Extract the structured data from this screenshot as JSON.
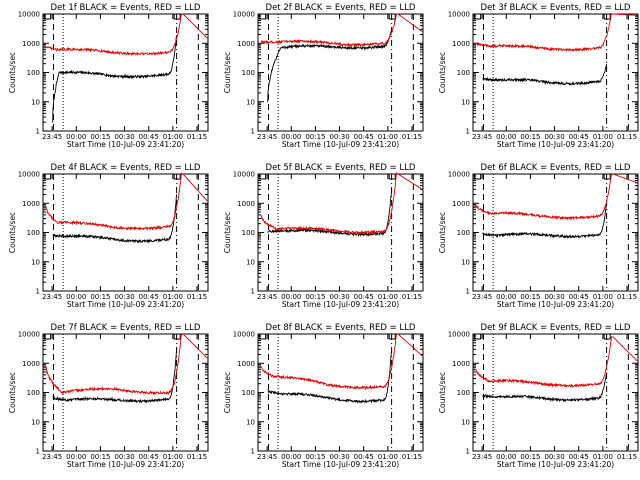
{
  "colors": {
    "events": "#000000",
    "lld": "#e00000",
    "axis": "#000000"
  },
  "shared": {
    "ylabel": "Counts/sec",
    "xlabel": "Start Time (10-Jul-09 23:41:20)",
    "yticks": [
      "1",
      "10",
      "100",
      "1000",
      "10000"
    ],
    "xticks": [
      "23:45",
      "00:00",
      "00:15",
      "00:30",
      "00:45",
      "01:00",
      "01:15"
    ],
    "ylim": [
      1,
      10000
    ],
    "xlim_minutes": [
      -1.3,
      37.5
    ]
  },
  "chart_data": [
    {
      "type": "line",
      "title": "Det 1f BLACK = Events, RED = LLD",
      "series": [
        {
          "name": "Events",
          "start": 4,
          "v0": 2,
          "v1": 100,
          "p": 4,
          "v2": 75,
          "v3": 90,
          "v4": 2000
        },
        {
          "name": "LLD",
          "start": 0,
          "v0": 800,
          "v1": 600,
          "p": 7,
          "v2": 480,
          "v3": 500,
          "v4": 10000,
          "decay": 1500
        }
      ]
    },
    {
      "type": "line",
      "title": "Det 2f BLACK = Events, RED = LLD",
      "series": [
        {
          "name": "Events",
          "start": 4,
          "v0": 10,
          "v1": 700,
          "p": 8,
          "v2": 750,
          "v3": 800,
          "v4": 3000
        },
        {
          "name": "LLD",
          "start": 0,
          "v0": 1100,
          "v1": 1100,
          "p": 10,
          "v2": 1000,
          "v3": 1000,
          "v4": 10000,
          "decay": 2500
        }
      ]
    },
    {
      "type": "line",
      "title": "Det 3f BLACK = Events, RED = LLD",
      "series": [
        {
          "name": "Events",
          "start": 4,
          "v0": 60,
          "v1": 55,
          "p": 12,
          "v2": 45,
          "v3": 50,
          "v4": 200
        },
        {
          "name": "LLD",
          "start": 0,
          "v0": 1000,
          "v1": 800,
          "p": 10,
          "v2": 650,
          "v3": 700,
          "v4": 10000,
          "decay": 9000
        }
      ]
    },
    {
      "type": "line",
      "title": "Det 4f BLACK = Events, RED = LLD",
      "series": [
        {
          "name": "Events",
          "start": 4,
          "v0": 80,
          "v1": 75,
          "p": 8,
          "v2": 55,
          "v3": 60,
          "v4": 2000
        },
        {
          "name": "LLD",
          "start": 0,
          "v0": 800,
          "v1": 220,
          "p": 7,
          "v2": 150,
          "v3": 160,
          "v4": 10000,
          "decay": 1200
        }
      ]
    },
    {
      "type": "line",
      "title": "Det 5f BLACK = Events, RED = LLD",
      "series": [
        {
          "name": "Events",
          "start": 4,
          "v0": 110,
          "v1": 110,
          "p": 10,
          "v2": 100,
          "v3": 95,
          "v4": 3000
        },
        {
          "name": "LLD",
          "start": 0,
          "v0": 400,
          "v1": 130,
          "p": 10,
          "v2": 120,
          "v3": 110,
          "v4": 10000,
          "decay": 3000
        }
      ]
    },
    {
      "type": "line",
      "title": "Det 6f BLACK = Events, RED = LLD",
      "series": [
        {
          "name": "Events",
          "start": 4,
          "v0": 90,
          "v1": 80,
          "p": 10,
          "v2": 80,
          "v3": 85,
          "v4": 1000
        },
        {
          "name": "LLD",
          "start": 0,
          "v0": 900,
          "v1": 450,
          "p": 8,
          "v2": 350,
          "v3": 370,
          "v4": 10000,
          "decay": 5000
        }
      ]
    },
    {
      "type": "line",
      "title": "Det 7f BLACK = Events, RED = LLD",
      "series": [
        {
          "name": "Events",
          "start": 4,
          "v0": 70,
          "v1": 55,
          "p": 10,
          "v2": 55,
          "v3": 60,
          "v4": 3000
        },
        {
          "name": "LLD",
          "start": 0,
          "v0": 800,
          "v1": 100,
          "p": 10,
          "v2": 130,
          "v3": 100,
          "v4": 10000,
          "decay": 1500
        }
      ]
    },
    {
      "type": "line",
      "title": "Det 8f BLACK = Events, RED = LLD",
      "series": [
        {
          "name": "Events",
          "start": 4,
          "v0": 120,
          "v1": 90,
          "p": 10,
          "v2": 60,
          "v3": 55,
          "v4": 3000
        },
        {
          "name": "LLD",
          "start": 0,
          "v0": 800,
          "v1": 350,
          "p": 8,
          "v2": 180,
          "v3": 160,
          "v4": 10000,
          "decay": 1800
        }
      ]
    },
    {
      "type": "line",
      "title": "Det 9f BLACK = Events, RED = LLD",
      "series": [
        {
          "name": "Events",
          "start": 4,
          "v0": 80,
          "v1": 70,
          "p": 10,
          "v2": 60,
          "v3": 65,
          "v4": 500
        },
        {
          "name": "LLD",
          "start": 0,
          "v0": 600,
          "v1": 250,
          "p": 8,
          "v2": 190,
          "v3": 200,
          "v4": 8000,
          "decay": 1200
        }
      ]
    }
  ]
}
